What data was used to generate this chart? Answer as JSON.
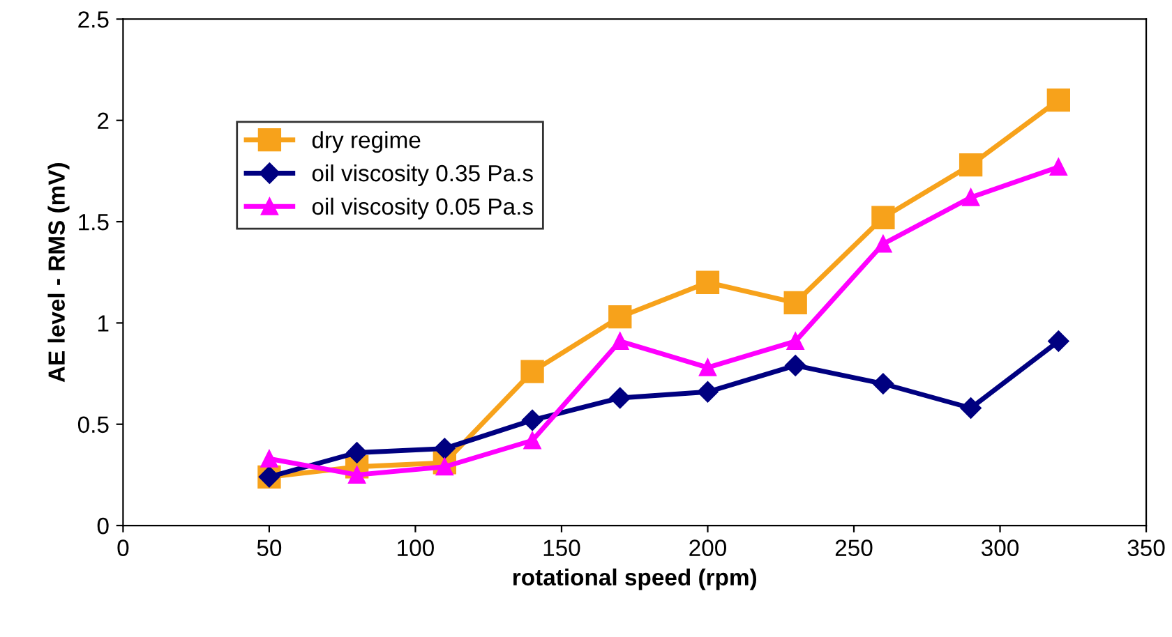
{
  "chart_data": {
    "type": "line",
    "xlabel": "rotational speed (rpm)",
    "ylabel": "AE level - RMS (mV)",
    "x": [
      50,
      80,
      110,
      140,
      170,
      200,
      230,
      260,
      290,
      320
    ],
    "series": [
      {
        "name": "dry regime",
        "color": "#f7a21b",
        "marker": "square",
        "values": [
          0.24,
          0.29,
          0.31,
          0.76,
          1.03,
          1.2,
          1.1,
          1.52,
          1.78,
          2.1
        ]
      },
      {
        "name": "oil viscosity 0.35 Pa.s",
        "color": "#000080",
        "marker": "diamond",
        "values": [
          0.24,
          0.36,
          0.38,
          0.52,
          0.63,
          0.66,
          0.79,
          0.7,
          0.58,
          0.91
        ]
      },
      {
        "name": "oil viscosity 0.05 Pa.s",
        "color": "#ff00ff",
        "marker": "triangle",
        "values": [
          0.33,
          0.25,
          0.29,
          0.42,
          0.91,
          0.78,
          0.91,
          1.39,
          1.62,
          1.77
        ]
      }
    ],
    "xlim": [
      0,
      350
    ],
    "xticks": [
      0,
      50,
      100,
      150,
      200,
      250,
      300,
      350
    ],
    "ylim": [
      0,
      2.5
    ],
    "yticks": [
      0,
      0.5,
      1,
      1.5,
      2,
      2.5
    ],
    "grid": false,
    "legend": "top left",
    "line_style": "solid"
  }
}
